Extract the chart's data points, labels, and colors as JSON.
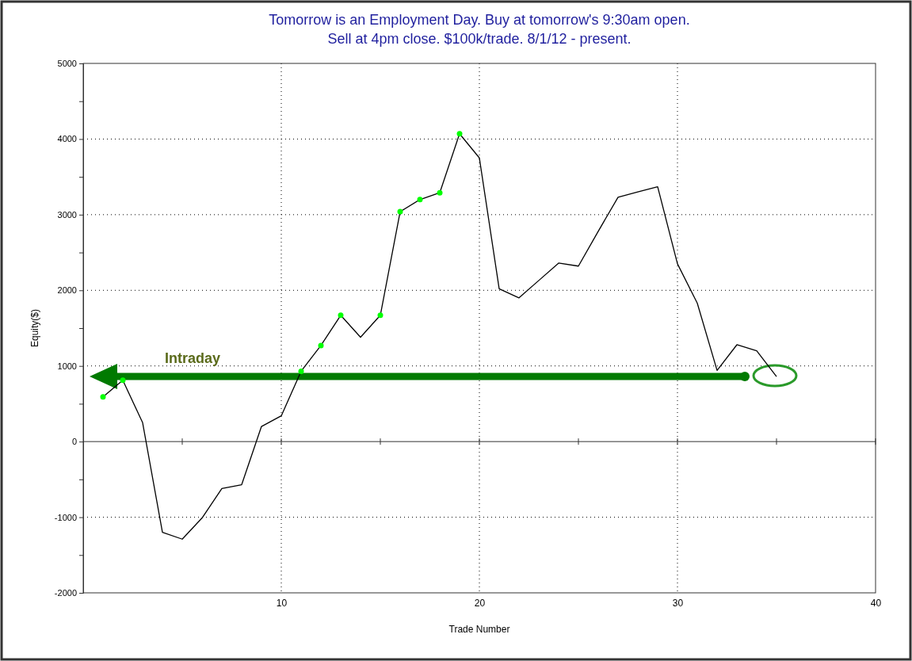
{
  "chart_data": {
    "type": "line",
    "title": "Tomorrow is an Employment Day. Buy at tomorrow's 9:30am open.",
    "subtitle": "Sell at 4pm close. $100k/trade. 8/1/12 - present.",
    "xlabel": "Trade Number",
    "ylabel": "Equity($)",
    "annotations": [
      "Intraday"
    ],
    "x": [
      1,
      2,
      3,
      4,
      5,
      6,
      7,
      8,
      9,
      10,
      11,
      12,
      13,
      14,
      15,
      16,
      17,
      18,
      19,
      20,
      21,
      22,
      23,
      24,
      25,
      26,
      27,
      28,
      29,
      30,
      31,
      32,
      33,
      34,
      35
    ],
    "series": [
      {
        "color": "#000000",
        "values": [
          590,
          810,
          250,
          -1200,
          -1290,
          -1010,
          -620,
          -570,
          200,
          340,
          930,
          1270,
          1670,
          1380,
          1670,
          3040,
          3200,
          3290,
          4070,
          3750,
          2020,
          1900,
          2130,
          2360,
          2320,
          2780,
          3230,
          3300,
          3370,
          2350,
          1830,
          940,
          1280,
          1200,
          860
        ]
      },
      {
        "type": "scatter",
        "color": "#00ff00",
        "x": [
          1,
          2,
          11,
          12,
          13,
          15,
          16,
          17,
          18,
          19
        ],
        "values": [
          590,
          810,
          930,
          1270,
          1670,
          1670,
          3040,
          3200,
          3290,
          4070
        ]
      }
    ],
    "xlim": [
      0,
      40
    ],
    "xticks": [
      {
        "value": 5,
        "label": null
      },
      10,
      {
        "value": 15,
        "label": null
      },
      20,
      {
        "value": 25,
        "label": null
      },
      30,
      {
        "value": 35,
        "label": null
      },
      40
    ],
    "ylim": [
      -2000,
      5000
    ],
    "yticks": [
      -2000,
      {
        "value": -1500,
        "label": null
      },
      -1000,
      {
        "value": -500,
        "label": null
      },
      0,
      {
        "value": 500,
        "label": null
      },
      1000,
      {
        "value": 1500,
        "label": null
      },
      2000,
      {
        "value": 2500,
        "label": null
      },
      3000,
      {
        "value": 3500,
        "label": null
      },
      4000,
      {
        "value": 4500,
        "label": null
      },
      5000
    ],
    "grid": true,
    "line_style": "solid"
  }
}
